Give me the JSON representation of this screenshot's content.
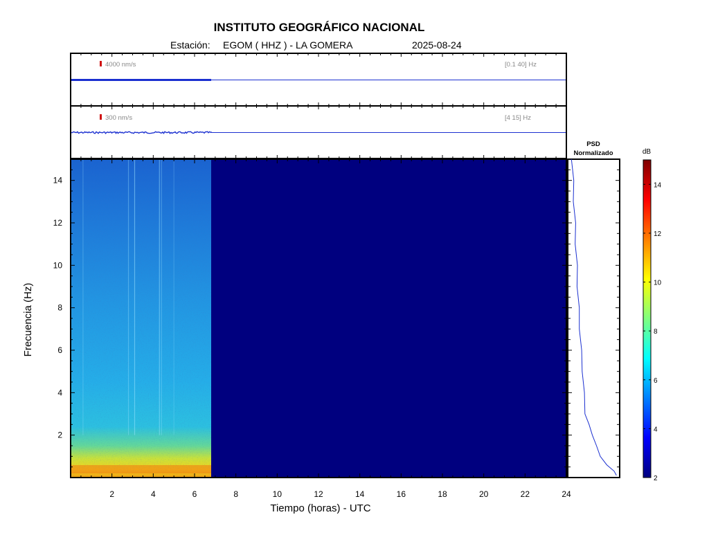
{
  "header": {
    "title": "INSTITUTO GEOGRÁFICO NACIONAL",
    "station_label": "Estación:",
    "station": "EGOM ( HHZ ) - LA GOMERA",
    "date": "2025-08-24"
  },
  "trace1": {
    "scale": "4000 nm/s",
    "band": "[0.1 40] Hz"
  },
  "trace2": {
    "scale": "300 nm/s",
    "band": "[4 15] Hz"
  },
  "psd": {
    "title_line1": "PSD",
    "title_line2": "Normalizado"
  },
  "colorbar": {
    "unit": "dB",
    "ticks": [
      "2",
      "4",
      "6",
      "8",
      "10",
      "12",
      "14"
    ],
    "range": [
      2,
      15
    ]
  },
  "chart_data": {
    "type": "heatmap",
    "title": "INSTITUTO GEOGRÁFICO NACIONAL",
    "xlabel": "Tiempo (horas) - UTC",
    "ylabel": "Frecuencia  (Hz)",
    "xlim": [
      0,
      24
    ],
    "ylim": [
      0,
      15
    ],
    "x_ticks": [
      "2",
      "4",
      "6",
      "8",
      "10",
      "12",
      "14",
      "16",
      "18",
      "20",
      "22",
      "24"
    ],
    "y_ticks": [
      "2",
      "4",
      "6",
      "8",
      "10",
      "12",
      "14"
    ],
    "data_end_hour": 6.85,
    "colormap": "jet",
    "colors": {
      "no_data": "#00007f",
      "low_freq_band": "#f2c21a",
      "mid": "#2aa7e6",
      "high": "#1a5fd2",
      "trace": "#1a2fd0",
      "scale_marker": "#d01010"
    },
    "spectrum_profile": [
      {
        "freq_hz": 0.3,
        "db": 12.0
      },
      {
        "freq_hz": 1.0,
        "db": 10.2
      },
      {
        "freq_hz": 2.0,
        "db": 8.0
      },
      {
        "freq_hz": 3.0,
        "db": 7.2
      },
      {
        "freq_hz": 4.0,
        "db": 6.8
      },
      {
        "freq_hz": 6.0,
        "db": 6.3
      },
      {
        "freq_hz": 8.0,
        "db": 5.9
      },
      {
        "freq_hz": 10.0,
        "db": 5.6
      },
      {
        "freq_hz": 12.0,
        "db": 5.2
      },
      {
        "freq_hz": 14.0,
        "db": 5.0
      },
      {
        "freq_hz": 15.0,
        "db": 4.9
      }
    ],
    "psd_normalized": [
      {
        "freq_hz": 0.1,
        "value": 0.96
      },
      {
        "freq_hz": 0.3,
        "value": 0.94
      },
      {
        "freq_hz": 0.6,
        "value": 0.75
      },
      {
        "freq_hz": 1.0,
        "value": 0.64
      },
      {
        "freq_hz": 1.5,
        "value": 0.53
      },
      {
        "freq_hz": 2.0,
        "value": 0.47
      },
      {
        "freq_hz": 2.5,
        "value": 0.37
      },
      {
        "freq_hz": 3.0,
        "value": 0.31
      },
      {
        "freq_hz": 4.0,
        "value": 0.27
      },
      {
        "freq_hz": 5.0,
        "value": 0.25
      },
      {
        "freq_hz": 6.0,
        "value": 0.21
      },
      {
        "freq_hz": 7.0,
        "value": 0.19
      },
      {
        "freq_hz": 8.0,
        "value": 0.16
      },
      {
        "freq_hz": 9.0,
        "value": 0.14
      },
      {
        "freq_hz": 10.0,
        "value": 0.12
      },
      {
        "freq_hz": 11.0,
        "value": 0.1
      },
      {
        "freq_hz": 12.0,
        "value": 0.08
      },
      {
        "freq_hz": 13.0,
        "value": 0.06
      },
      {
        "freq_hz": 14.0,
        "value": 0.04
      },
      {
        "freq_hz": 15.0,
        "value": 0.02
      }
    ]
  }
}
